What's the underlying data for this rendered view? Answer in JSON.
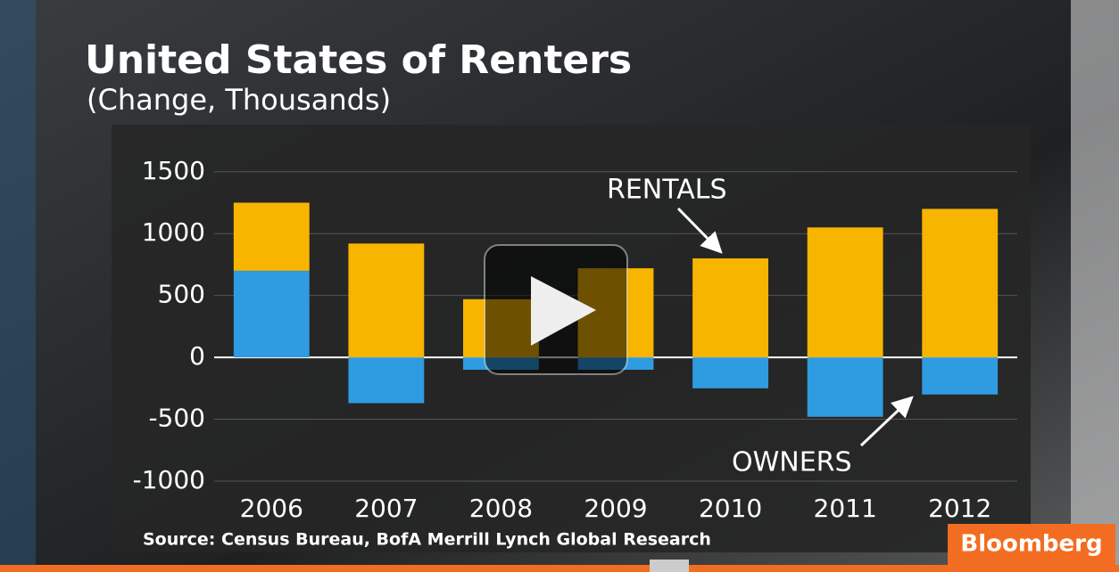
{
  "chart_data": {
    "type": "bar",
    "stacked": true,
    "title": "United States of Renters",
    "subtitle": "(Change, Thousands)",
    "source": "Source: Census Bureau, BofA Merrill Lynch Global Research",
    "categories": [
      "2006",
      "2007",
      "2008",
      "2009",
      "2010",
      "2011",
      "2012"
    ],
    "series": [
      {
        "name": "OWNERS",
        "color": "#2f9be0",
        "values": [
          700,
          -370,
          -100,
          -100,
          -250,
          -480,
          -300
        ]
      },
      {
        "name": "RENTALS",
        "color": "#f7b500",
        "values": [
          550,
          920,
          470,
          720,
          800,
          1050,
          1200
        ]
      }
    ],
    "ylim": [
      -1000,
      1700
    ],
    "yticks": [
      -1000,
      -500,
      0,
      500,
      1000,
      1500
    ],
    "grid": true
  },
  "brand": "Bloomberg"
}
